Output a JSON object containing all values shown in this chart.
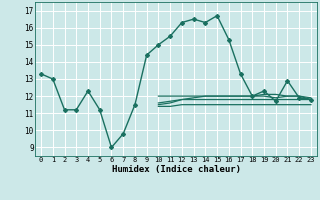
{
  "x": [
    0,
    1,
    2,
    3,
    4,
    5,
    6,
    7,
    8,
    9,
    10,
    11,
    12,
    13,
    14,
    15,
    16,
    17,
    18,
    19,
    20,
    21,
    22,
    23
  ],
  "line_main": [
    13.3,
    13.0,
    11.2,
    11.2,
    12.3,
    11.2,
    9.0,
    9.8,
    11.5,
    14.4,
    15.0,
    15.5,
    16.3,
    16.5,
    16.3,
    16.7,
    15.3,
    13.3,
    12.0,
    12.3,
    11.7,
    12.9,
    11.9,
    11.8
  ],
  "line_flat1": [
    null,
    null,
    null,
    null,
    null,
    null,
    null,
    null,
    null,
    null,
    12.0,
    12.0,
    12.0,
    12.0,
    12.0,
    12.0,
    12.0,
    12.0,
    12.0,
    12.0,
    11.9,
    12.0,
    12.0,
    11.8
  ],
  "line_flat2": [
    null,
    null,
    null,
    null,
    null,
    null,
    null,
    null,
    null,
    null,
    11.6,
    11.7,
    11.8,
    11.8,
    11.8,
    11.8,
    11.8,
    11.8,
    11.8,
    11.8,
    11.8,
    11.8,
    11.8,
    11.8
  ],
  "line_flat3": [
    null,
    null,
    null,
    null,
    null,
    null,
    null,
    null,
    null,
    null,
    11.4,
    11.4,
    11.5,
    11.5,
    11.5,
    11.5,
    11.5,
    11.5,
    11.5,
    11.5,
    11.5,
    11.5,
    11.5,
    11.5
  ],
  "line_flat4": [
    null,
    null,
    null,
    null,
    null,
    null,
    null,
    null,
    null,
    null,
    11.5,
    11.6,
    11.8,
    11.9,
    12.0,
    12.0,
    12.0,
    12.0,
    12.0,
    12.1,
    12.1,
    12.0,
    12.0,
    11.9
  ],
  "color": "#1a7060",
  "bg_color": "#cce8e8",
  "xlabel": "Humidex (Indice chaleur)",
  "xlim": [
    -0.5,
    23.5
  ],
  "ylim": [
    8.5,
    17.5
  ],
  "yticks": [
    9,
    10,
    11,
    12,
    13,
    14,
    15,
    16,
    17
  ],
  "xticks": [
    0,
    1,
    2,
    3,
    4,
    5,
    6,
    7,
    8,
    9,
    10,
    11,
    12,
    13,
    14,
    15,
    16,
    17,
    18,
    19,
    20,
    21,
    22,
    23
  ]
}
